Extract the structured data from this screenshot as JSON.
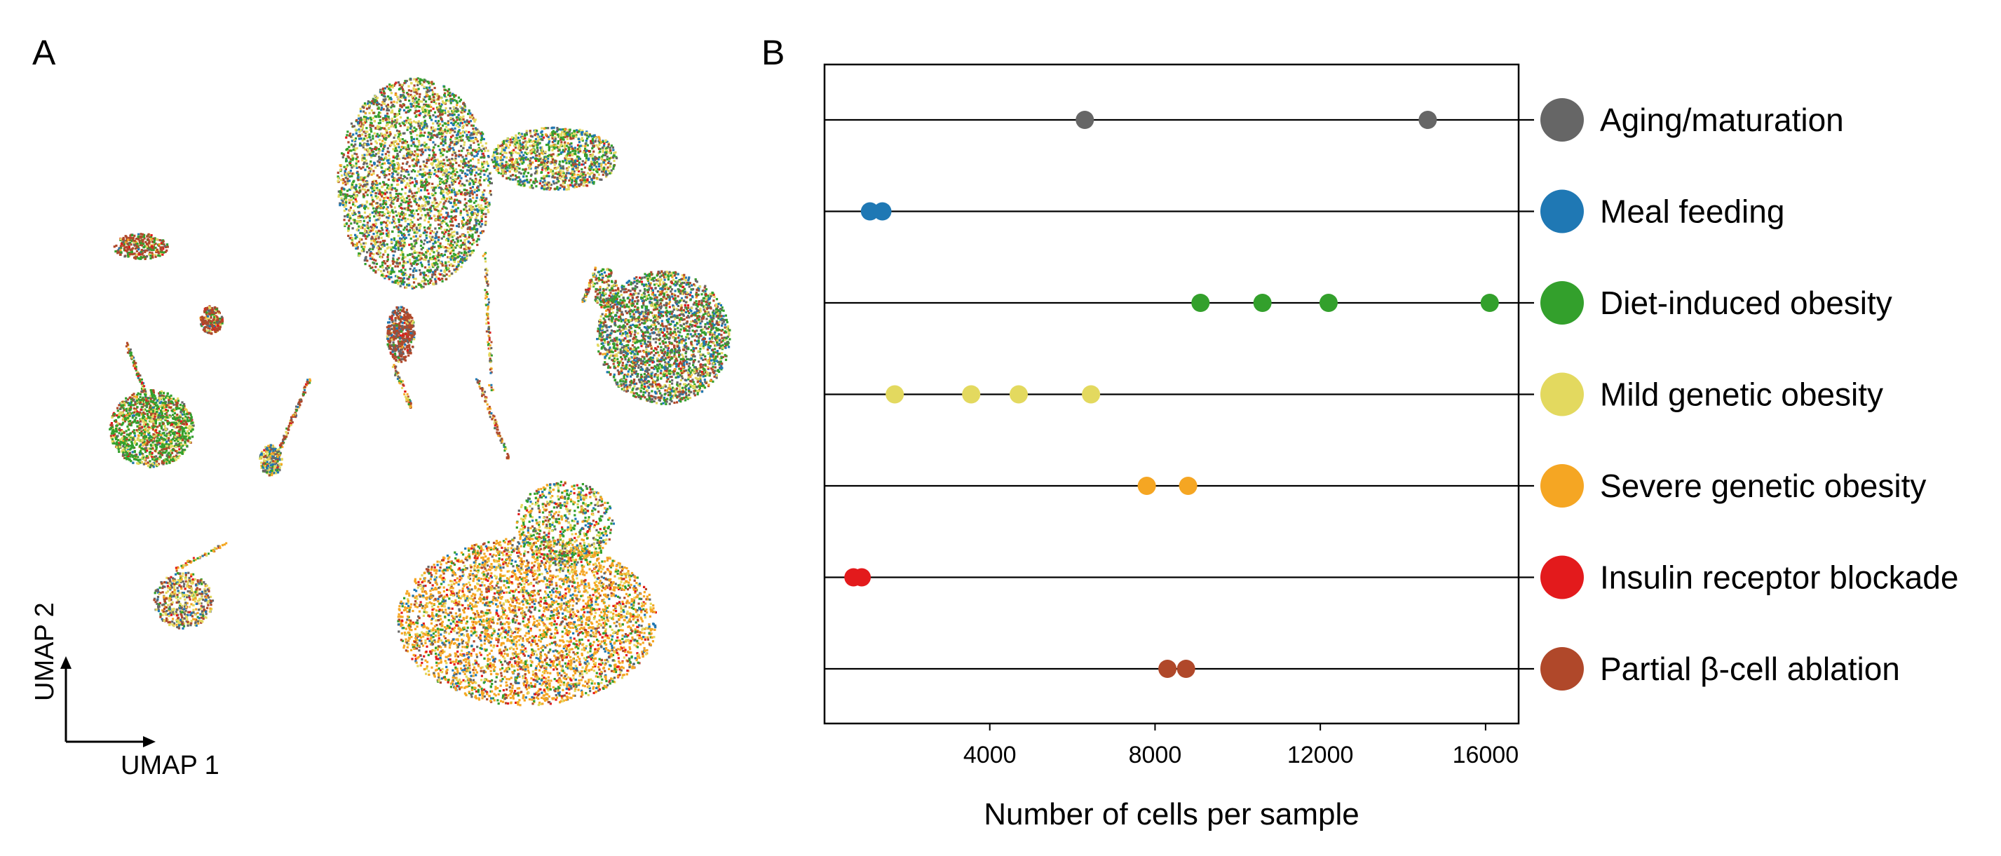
{
  "panels": {
    "a_label": "A",
    "b_label": "B"
  },
  "umap": {
    "x_axis_label": "UMAP 1",
    "y_axis_label": "UMAP 2"
  },
  "colors": {
    "Aging/maturation": "#666666",
    "Meal feeding": "#1f78b4",
    "Diet-induced obesity": "#33a02c",
    "Mild genetic obesity": "#e3d95f",
    "Severe genetic obesity": "#f5a623",
    "Insulin receptor blockade": "#e31a1c",
    "Partial β-cell ablation": "#b0482a"
  },
  "chart_data": [
    {
      "type": "scatter",
      "xlabel": "UMAP 1",
      "ylabel": "UMAP 2",
      "clusters_colored_by": [
        "Aging/maturation",
        "Meal feeding",
        "Diet-induced obesity",
        "Mild genetic obesity",
        "Severe genetic obesity",
        "Insulin receptor blockade",
        "Partial β-cell ablation"
      ]
    },
    {
      "type": "scatter",
      "xlabel": "Number of cells per sample",
      "ylabel": "",
      "xlim": [
        0,
        16800
      ],
      "xticks": [
        4000,
        8000,
        12000,
        16000
      ],
      "legend_position": "right",
      "grid": false,
      "categories": [
        "Aging/maturation",
        "Meal feeding",
        "Diet-induced obesity",
        "Mild genetic obesity",
        "Severe genetic obesity",
        "Insulin receptor blockade",
        "Partial β-cell ablation"
      ],
      "series": [
        {
          "name": "Aging/maturation",
          "values": [
            6300,
            14600
          ]
        },
        {
          "name": "Meal feeding",
          "values": [
            1100,
            1400
          ]
        },
        {
          "name": "Diet-induced obesity",
          "values": [
            9100,
            10600,
            12200,
            16100
          ]
        },
        {
          "name": "Mild genetic obesity",
          "values": [
            1700,
            3550,
            4700,
            6450
          ]
        },
        {
          "name": "Severe genetic obesity",
          "values": [
            7800,
            8800
          ]
        },
        {
          "name": "Insulin receptor blockade",
          "values": [
            700,
            900
          ]
        },
        {
          "name": "Partial β-cell ablation",
          "values": [
            8300,
            8750
          ]
        }
      ]
    }
  ]
}
